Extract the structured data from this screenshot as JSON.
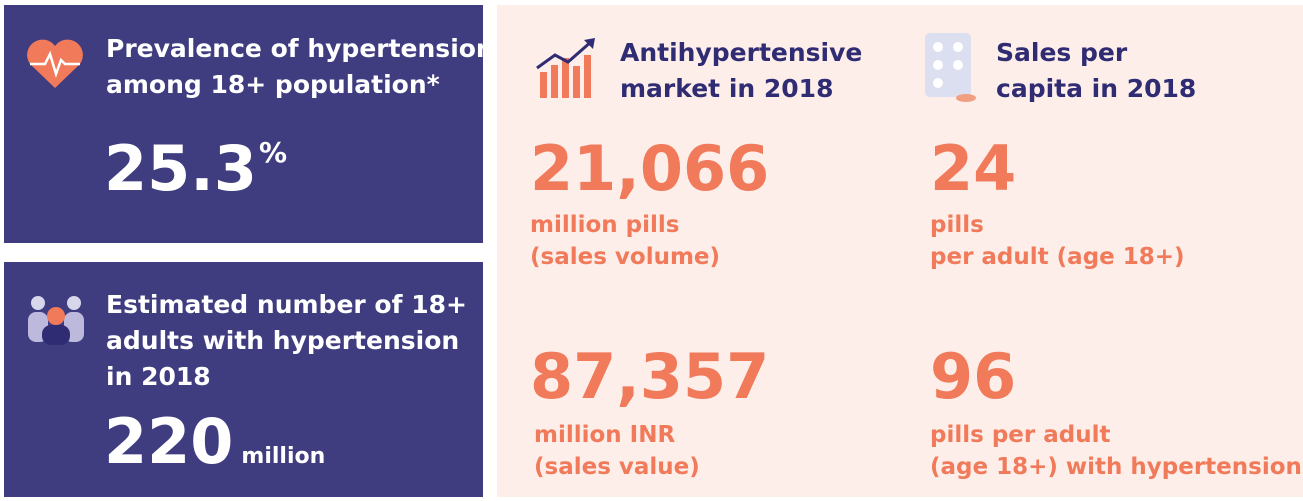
{
  "panels": [
    {
      "title": [
        "Prevalence of hypertension",
        "among 18+ population*"
      ],
      "value": "25.3",
      "unit": "%"
    },
    {
      "title": [
        "Estimated number of 18+",
        "adults with hypertension",
        "in 2018"
      ],
      "value": "220",
      "unit": "million"
    }
  ],
  "market": {
    "title": [
      "Antihypertensive",
      "market in 2018"
    ],
    "stats": [
      {
        "value": "21,066",
        "label": [
          "million pills",
          "(sales volume)"
        ]
      },
      {
        "value": "87,357",
        "label": [
          "million INR",
          "(sales value)"
        ]
      }
    ]
  },
  "per_capita": {
    "title": [
      "Sales per",
      "capita in 2018"
    ],
    "stats": [
      {
        "value": "24",
        "label": [
          "pills",
          "per adult (age 18+)"
        ]
      },
      {
        "value": "96",
        "label": [
          "pills per adult",
          "(age 18+) with hypertension"
        ]
      }
    ]
  }
}
